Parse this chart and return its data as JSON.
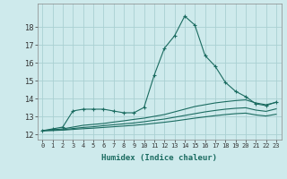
{
  "xlabel": "Humidex (Indice chaleur)",
  "ylabel": "",
  "xlim": [
    -0.5,
    23.5
  ],
  "ylim": [
    11.7,
    19.3
  ],
  "bg_color": "#ceeaec",
  "grid_color": "#aad0d2",
  "line_color": "#1a6b60",
  "xtick_labels": [
    "0",
    "1",
    "2",
    "3",
    "4",
    "5",
    "6",
    "7",
    "8",
    "9",
    "10",
    "11",
    "12",
    "13",
    "14",
    "15",
    "16",
    "17",
    "18",
    "19",
    "20",
    "21",
    "22",
    "23"
  ],
  "ytick_values": [
    12,
    13,
    14,
    15,
    16,
    17,
    18
  ],
  "lines": [
    {
      "x": [
        0,
        1,
        2,
        3,
        4,
        5,
        6,
        7,
        8,
        9,
        10,
        11,
        12,
        13,
        14,
        15,
        16,
        17,
        18,
        19,
        20,
        21,
        22,
        23
      ],
      "y": [
        12.2,
        12.3,
        12.4,
        13.3,
        13.4,
        13.4,
        13.4,
        13.3,
        13.2,
        13.2,
        13.5,
        15.3,
        16.8,
        17.5,
        18.6,
        18.1,
        16.4,
        15.8,
        14.9,
        14.4,
        14.1,
        13.7,
        13.6,
        13.8
      ],
      "marker": true
    },
    {
      "x": [
        0,
        1,
        2,
        3,
        4,
        5,
        6,
        7,
        8,
        9,
        10,
        11,
        12,
        13,
        14,
        15,
        16,
        17,
        18,
        19,
        20,
        21,
        22,
        23
      ],
      "y": [
        12.2,
        12.25,
        12.3,
        12.4,
        12.5,
        12.55,
        12.6,
        12.68,
        12.75,
        12.83,
        12.9,
        13.0,
        13.1,
        13.25,
        13.4,
        13.55,
        13.65,
        13.75,
        13.82,
        13.88,
        13.92,
        13.75,
        13.65,
        13.78
      ],
      "marker": false
    },
    {
      "x": [
        0,
        1,
        2,
        3,
        4,
        5,
        6,
        7,
        8,
        9,
        10,
        11,
        12,
        13,
        14,
        15,
        16,
        17,
        18,
        19,
        20,
        21,
        22,
        23
      ],
      "y": [
        12.2,
        12.22,
        12.25,
        12.32,
        12.38,
        12.42,
        12.48,
        12.53,
        12.58,
        12.63,
        12.7,
        12.78,
        12.85,
        12.95,
        13.05,
        13.15,
        13.25,
        13.33,
        13.4,
        13.45,
        13.48,
        13.35,
        13.28,
        13.42
      ],
      "marker": false
    },
    {
      "x": [
        0,
        1,
        2,
        3,
        4,
        5,
        6,
        7,
        8,
        9,
        10,
        11,
        12,
        13,
        14,
        15,
        16,
        17,
        18,
        19,
        20,
        21,
        22,
        23
      ],
      "y": [
        12.2,
        12.21,
        12.23,
        12.27,
        12.31,
        12.34,
        12.38,
        12.42,
        12.46,
        12.5,
        12.55,
        12.61,
        12.67,
        12.74,
        12.82,
        12.9,
        12.97,
        13.04,
        13.1,
        13.15,
        13.18,
        13.08,
        13.02,
        13.12
      ],
      "marker": false
    }
  ]
}
